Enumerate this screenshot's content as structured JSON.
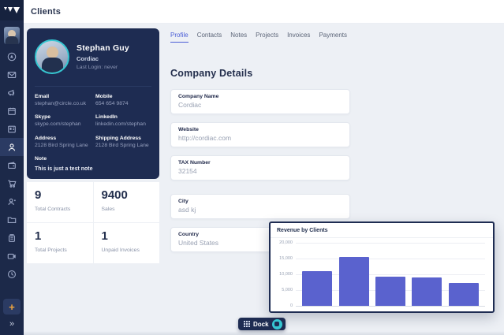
{
  "app": {
    "header_title": "Clients"
  },
  "sidebar": {
    "icon_names": [
      "user-avatar",
      "compass-icon",
      "mail-icon",
      "megaphone-icon",
      "calendar-icon",
      "projects-board-icon",
      "clients-icon",
      "wallet-icon",
      "cart-icon",
      "contacts-icon",
      "folder-icon",
      "archive-icon",
      "video-icon",
      "clock-icon"
    ],
    "active_item": "clients",
    "plus_label": "+",
    "collapse_label": "»"
  },
  "client_card": {
    "name": "Stephan Guy",
    "company": "Cordiac",
    "last_login": "Last Login: never",
    "fields": [
      {
        "label": "Email",
        "value": "stephan@circle.co.uk"
      },
      {
        "label": "Mobile",
        "value": "654 654 9874"
      },
      {
        "label": "Skype",
        "value": "skype.com/stephan"
      },
      {
        "label": "LinkedIn",
        "value": "linkedin.com/stephan"
      },
      {
        "label": "Address",
        "value": "2128 Bird Spring Lane"
      },
      {
        "label": "Shipping Address",
        "value": "2128 Bird Spring Lane"
      }
    ],
    "note_label": "Note",
    "note_value": "This is just a test note"
  },
  "stats": [
    {
      "value": "9",
      "label": "Total Contracts"
    },
    {
      "value": "9400",
      "label": "Sales"
    },
    {
      "value": "1",
      "label": "Total Projects"
    },
    {
      "value": "1",
      "label": "Unpaid Invoices"
    }
  ],
  "tabs": [
    {
      "label": "Profile"
    },
    {
      "label": "Contacts"
    },
    {
      "label": "Notes"
    },
    {
      "label": "Projects"
    },
    {
      "label": "Invoices"
    },
    {
      "label": "Payments"
    }
  ],
  "active_tab": "Profile",
  "form": {
    "heading": "Company Details",
    "fields": [
      {
        "label": "Company Name",
        "value": "Cordiac"
      },
      {
        "label": "Website",
        "value": "http://cordiac.com"
      },
      {
        "label": "TAX Number",
        "value": "32154"
      },
      {
        "label": "City",
        "value": "asd kj"
      },
      {
        "label": "Country",
        "value": "United States"
      }
    ]
  },
  "chart_data": {
    "type": "bar",
    "title": "Revenue by Clients",
    "categories": [
      "",
      "",
      "",
      "",
      ""
    ],
    "values": [
      11000,
      15500,
      9200,
      9000,
      7200
    ],
    "xlabel": "",
    "ylabel": "",
    "ylim": [
      0,
      20000
    ],
    "y_ticks": [
      0,
      5000,
      10000,
      15000,
      20000
    ],
    "grid": true,
    "legend": false,
    "bar_color": "#5a62ce"
  },
  "dock": {
    "label": "Dock"
  },
  "colors": {
    "sidebar_bg": "#1c2949",
    "card_bg": "#1e2c52",
    "accent_teal": "#35c7d2",
    "accent_blue": "#4b5ed6",
    "accent_orange": "#f0a63f",
    "content_bg": "#edf0f5",
    "bar_color": "#5a62ce"
  }
}
